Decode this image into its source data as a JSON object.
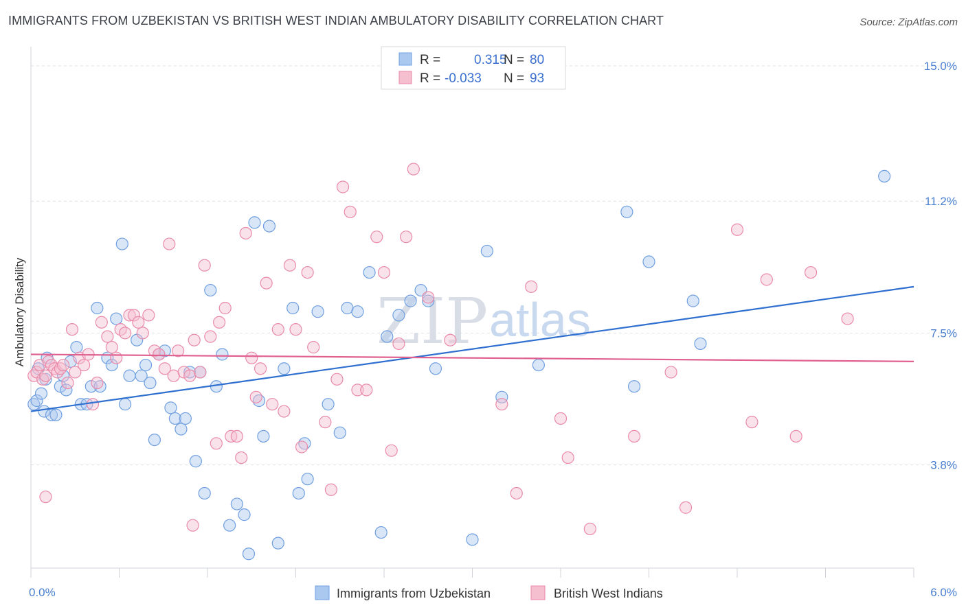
{
  "header": {
    "title": "IMMIGRANTS FROM UZBEKISTAN VS BRITISH WEST INDIAN AMBULATORY DISABILITY CORRELATION CHART",
    "source": "Source: ZipAtlas.com"
  },
  "watermark": {
    "part1": "ZIP",
    "part2": "atlas"
  },
  "legend": {
    "rows": [
      {
        "r_label": "R =",
        "r_value": "0.315",
        "n_label": "N =",
        "n_value": "80"
      },
      {
        "r_label": "R =",
        "r_value": "-0.033",
        "n_label": "N =",
        "n_value": "93"
      }
    ]
  },
  "bottom_legend": {
    "items": [
      {
        "label": "Immigrants from Uzbekistan"
      },
      {
        "label": "British West Indians"
      }
    ]
  },
  "colors": {
    "blue_fill": "#aac8f0",
    "blue_stroke": "#6f9fe0",
    "blue_line": "#2f6fd0",
    "pink_fill": "#f5bfd0",
    "pink_stroke": "#e98aa9",
    "pink_line": "#e06090",
    "tick_color": "#4a7fd0",
    "grid": "#dde1e6"
  },
  "chart_data": {
    "type": "scatter",
    "title": "IMMIGRANTS FROM UZBEKISTAN VS BRITISH WEST INDIAN AMBULATORY DISABILITY CORRELATION CHART",
    "xlabel": "",
    "ylabel": "Ambulatory Disability",
    "xlim": [
      0,
      6.0
    ],
    "ylim": [
      0.9,
      15.5
    ],
    "x_tick_labels": [
      "0.0%",
      "6.0%"
    ],
    "y_ticks": [
      3.8,
      7.5,
      11.2,
      15.0
    ],
    "y_tick_labels": [
      "3.8%",
      "7.5%",
      "11.2%",
      "15.0%"
    ],
    "grid": true,
    "legend_position": "top-center",
    "series": [
      {
        "name": "Immigrants from Uzbekistan",
        "color": "#6f9fe0",
        "trend": {
          "x": [
            0.0,
            6.0
          ],
          "y": [
            5.3,
            8.8
          ]
        },
        "points": [
          [
            0.02,
            5.5
          ],
          [
            0.04,
            5.6
          ],
          [
            0.07,
            5.8
          ],
          [
            0.09,
            5.3
          ],
          [
            0.11,
            6.8
          ],
          [
            0.14,
            5.2
          ],
          [
            0.17,
            5.2
          ],
          [
            0.2,
            6.0
          ],
          [
            0.22,
            6.3
          ],
          [
            0.24,
            5.9
          ],
          [
            0.27,
            6.7
          ],
          [
            0.31,
            7.1
          ],
          [
            0.34,
            5.5
          ],
          [
            0.38,
            5.5
          ],
          [
            0.41,
            6.0
          ],
          [
            0.45,
            8.2
          ],
          [
            0.47,
            6.0
          ],
          [
            0.52,
            6.8
          ],
          [
            0.55,
            6.6
          ],
          [
            0.58,
            7.9
          ],
          [
            0.62,
            10.0
          ],
          [
            0.64,
            5.5
          ],
          [
            0.67,
            6.3
          ],
          [
            0.72,
            7.3
          ],
          [
            0.75,
            6.3
          ],
          [
            0.78,
            6.6
          ],
          [
            0.81,
            6.1
          ],
          [
            0.84,
            4.5
          ],
          [
            0.87,
            6.9
          ],
          [
            0.91,
            7.0
          ],
          [
            0.95,
            5.4
          ],
          [
            0.98,
            5.1
          ],
          [
            1.02,
            4.8
          ],
          [
            1.05,
            5.1
          ],
          [
            1.08,
            6.4
          ],
          [
            1.12,
            3.9
          ],
          [
            1.15,
            6.4
          ],
          [
            1.18,
            3.0
          ],
          [
            1.22,
            8.7
          ],
          [
            1.26,
            6.0
          ],
          [
            1.3,
            6.9
          ],
          [
            1.35,
            2.1
          ],
          [
            1.4,
            2.7
          ],
          [
            1.45,
            2.4
          ],
          [
            1.48,
            1.3
          ],
          [
            1.52,
            10.6
          ],
          [
            1.55,
            5.6
          ],
          [
            1.58,
            4.6
          ],
          [
            1.62,
            10.5
          ],
          [
            1.68,
            1.6
          ],
          [
            1.72,
            6.5
          ],
          [
            1.78,
            8.2
          ],
          [
            1.82,
            3.0
          ],
          [
            1.86,
            4.4
          ],
          [
            1.88,
            3.4
          ],
          [
            1.95,
            8.1
          ],
          [
            2.02,
            5.5
          ],
          [
            2.1,
            4.7
          ],
          [
            2.15,
            8.2
          ],
          [
            2.22,
            8.1
          ],
          [
            2.3,
            9.2
          ],
          [
            2.38,
            1.9
          ],
          [
            2.42,
            7.4
          ],
          [
            2.5,
            8.0
          ],
          [
            2.58,
            8.4
          ],
          [
            2.65,
            8.7
          ],
          [
            2.7,
            8.4
          ],
          [
            2.75,
            6.5
          ],
          [
            3.0,
            1.7
          ],
          [
            3.1,
            9.8
          ],
          [
            3.2,
            5.7
          ],
          [
            3.45,
            6.6
          ],
          [
            4.05,
            10.9
          ],
          [
            4.1,
            6.0
          ],
          [
            4.2,
            9.5
          ],
          [
            4.5,
            8.4
          ],
          [
            4.55,
            7.2
          ],
          [
            5.8,
            11.9
          ],
          [
            0.05,
            6.5
          ],
          [
            0.1,
            6.2
          ]
        ]
      },
      {
        "name": "British West Indians",
        "color": "#e98aa9",
        "trend": {
          "x": [
            0.0,
            6.0
          ],
          "y": [
            6.9,
            6.7
          ]
        },
        "points": [
          [
            0.02,
            6.3
          ],
          [
            0.04,
            6.4
          ],
          [
            0.06,
            6.6
          ],
          [
            0.08,
            6.2
          ],
          [
            0.1,
            6.3
          ],
          [
            0.12,
            6.7
          ],
          [
            0.14,
            6.6
          ],
          [
            0.16,
            6.5
          ],
          [
            0.18,
            6.4
          ],
          [
            0.2,
            6.5
          ],
          [
            0.22,
            6.6
          ],
          [
            0.25,
            6.1
          ],
          [
            0.28,
            7.6
          ],
          [
            0.3,
            6.4
          ],
          [
            0.33,
            6.8
          ],
          [
            0.36,
            6.6
          ],
          [
            0.39,
            6.9
          ],
          [
            0.42,
            5.5
          ],
          [
            0.45,
            6.1
          ],
          [
            0.48,
            7.8
          ],
          [
            0.52,
            7.4
          ],
          [
            0.55,
            7.1
          ],
          [
            0.58,
            6.8
          ],
          [
            0.61,
            7.6
          ],
          [
            0.64,
            7.5
          ],
          [
            0.67,
            8.0
          ],
          [
            0.7,
            8.0
          ],
          [
            0.73,
            7.8
          ],
          [
            0.76,
            7.5
          ],
          [
            0.8,
            8.0
          ],
          [
            0.84,
            7.0
          ],
          [
            0.87,
            6.9
          ],
          [
            0.91,
            6.5
          ],
          [
            0.94,
            10.0
          ],
          [
            0.97,
            6.3
          ],
          [
            1.0,
            7.0
          ],
          [
            1.04,
            6.4
          ],
          [
            1.08,
            6.3
          ],
          [
            1.11,
            7.3
          ],
          [
            1.15,
            6.4
          ],
          [
            1.18,
            9.4
          ],
          [
            1.22,
            7.4
          ],
          [
            1.26,
            4.4
          ],
          [
            1.28,
            7.8
          ],
          [
            1.32,
            8.2
          ],
          [
            1.36,
            4.6
          ],
          [
            1.4,
            4.6
          ],
          [
            1.43,
            4.0
          ],
          [
            1.46,
            10.3
          ],
          [
            1.5,
            6.8
          ],
          [
            1.53,
            5.7
          ],
          [
            1.56,
            6.5
          ],
          [
            1.6,
            8.9
          ],
          [
            1.64,
            5.5
          ],
          [
            1.68,
            7.6
          ],
          [
            1.72,
            5.3
          ],
          [
            1.76,
            9.4
          ],
          [
            1.8,
            7.6
          ],
          [
            1.84,
            4.3
          ],
          [
            1.88,
            9.2
          ],
          [
            1.92,
            7.1
          ],
          [
            2.0,
            5.0
          ],
          [
            2.04,
            3.1
          ],
          [
            2.08,
            6.2
          ],
          [
            2.12,
            11.6
          ],
          [
            2.17,
            10.9
          ],
          [
            2.22,
            5.9
          ],
          [
            2.28,
            5.9
          ],
          [
            2.35,
            10.2
          ],
          [
            2.4,
            9.2
          ],
          [
            2.45,
            4.2
          ],
          [
            2.5,
            7.2
          ],
          [
            2.55,
            10.2
          ],
          [
            2.6,
            12.1
          ],
          [
            2.7,
            8.5
          ],
          [
            2.85,
            7.3
          ],
          [
            3.2,
            5.5
          ],
          [
            3.3,
            3.0
          ],
          [
            3.4,
            8.8
          ],
          [
            3.6,
            5.1
          ],
          [
            3.65,
            4.0
          ],
          [
            3.8,
            2.0
          ],
          [
            4.1,
            4.6
          ],
          [
            4.35,
            6.4
          ],
          [
            4.45,
            2.6
          ],
          [
            4.8,
            10.4
          ],
          [
            4.9,
            5.0
          ],
          [
            5.0,
            9.0
          ],
          [
            5.2,
            4.6
          ],
          [
            5.3,
            9.2
          ],
          [
            5.55,
            7.9
          ],
          [
            0.1,
            2.9
          ],
          [
            1.1,
            2.1
          ]
        ]
      }
    ]
  }
}
